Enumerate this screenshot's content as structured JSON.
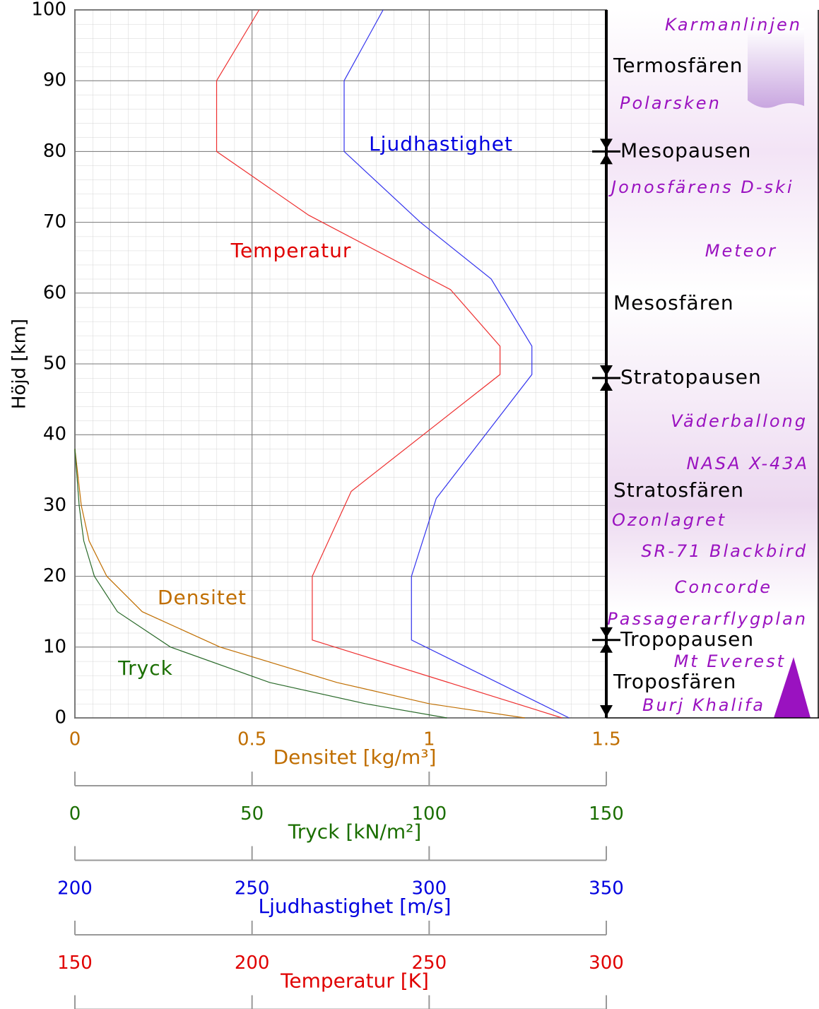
{
  "chart_data": {
    "type": "line",
    "y_label": "Höjd [km]",
    "ylim": [
      0,
      100
    ],
    "yticks": [
      0,
      10,
      20,
      30,
      40,
      50,
      60,
      70,
      80,
      90,
      100
    ],
    "grid": true,
    "xaxes": [
      {
        "label": "Densitet [kg/m³]",
        "color": "#c06e00",
        "xlim": [
          0,
          1.5
        ],
        "xticks": [
          0,
          0.5,
          1,
          1.5
        ]
      },
      {
        "label": "Tryck [kN/m²]",
        "color": "#1a6e00",
        "xlim": [
          0,
          150
        ],
        "xticks": [
          0,
          50,
          100,
          150
        ]
      },
      {
        "label": "Ljudhastighet [m/s]",
        "color": "#0000e0",
        "xlim": [
          200,
          350
        ],
        "xticks": [
          200,
          250,
          300,
          350
        ]
      },
      {
        "label": "Temperatur [K]",
        "color": "#e00000",
        "xlim": [
          150,
          300
        ],
        "xticks": [
          150,
          200,
          250,
          300
        ]
      }
    ],
    "series": [
      {
        "name": "Temperatur",
        "color": "#ee3030",
        "xaxis": 3,
        "altitude": [
          0,
          11,
          20,
          32,
          48.5,
          52.5,
          60.5,
          71,
          80,
          90,
          100
        ],
        "values": [
          287.5,
          217,
          217,
          228,
          270,
          270,
          256,
          216,
          190,
          190,
          202
        ]
      },
      {
        "name": "Ljudhastighet",
        "color": "#3333ee",
        "xaxis": 2,
        "altitude": [
          0,
          11,
          20,
          31,
          48.5,
          52.5,
          62,
          70,
          80,
          90,
          100
        ],
        "values": [
          339.5,
          295,
          295,
          302,
          329,
          329,
          317.5,
          297.5,
          276,
          276,
          287
        ]
      },
      {
        "name": "Densitet",
        "color": "#c06e00",
        "xaxis": 0,
        "altitude": [
          0,
          2,
          5,
          10,
          15,
          20,
          25,
          30,
          38
        ],
        "values": [
          1.27,
          1.0,
          0.74,
          0.41,
          0.19,
          0.09,
          0.04,
          0.018,
          0
        ]
      },
      {
        "name": "Tryck",
        "color": "#2a6a2a",
        "xaxis": 1,
        "altitude": [
          0,
          2,
          5,
          10,
          15,
          20,
          25,
          30,
          38
        ],
        "values": [
          105,
          82,
          55,
          27,
          12,
          5.5,
          2.5,
          1.2,
          0
        ]
      }
    ],
    "boundaries": [
      {
        "name": "Mesopausen",
        "altitude": 80
      },
      {
        "name": "Stratopausen",
        "altitude": 48
      },
      {
        "name": "Tropopausen",
        "altitude": 11
      }
    ],
    "layers": [
      "Termosfären",
      "Mesosfären",
      "Stratosfären",
      "Troposfären"
    ],
    "events": [
      "Karmanlinjen",
      "Polarsken",
      "Jonosfärens D-ski",
      "Meteor",
      "Väderballong",
      "NASA X-43A",
      "Ozonlagret",
      "SR-71 Blackbird",
      "Concorde",
      "Passagerarflygplan",
      "Mt Everest",
      "Burj Khalifa"
    ]
  }
}
